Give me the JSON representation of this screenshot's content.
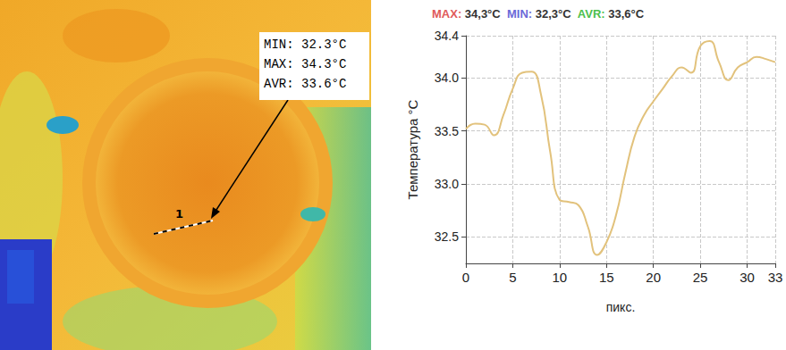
{
  "chart_data": {
    "type": "line",
    "header": [
      {
        "label": "MAX:",
        "text": "34,3°C",
        "color": "#e05a5a"
      },
      {
        "label": "MIN:",
        "text": "32,3°C",
        "color": "#6a6ad8"
      },
      {
        "label": "AVR:",
        "text": "33,6°C",
        "color": "#4cc04c"
      }
    ],
    "y_label": "Температура °C",
    "x_label": "пикс.",
    "x": [
      0,
      1,
      2,
      3,
      4,
      5,
      6,
      7,
      8,
      9,
      10,
      11,
      12,
      13,
      14,
      15,
      16,
      17,
      18,
      19,
      20,
      21,
      22,
      23,
      24,
      25,
      26,
      27,
      28,
      29,
      30,
      31,
      32,
      33
    ],
    "values": [
      33.52,
      33.57,
      33.56,
      33.46,
      33.65,
      33.9,
      34.05,
      34.06,
      33.85,
      33.3,
      32.85,
      32.83,
      32.8,
      32.6,
      32.33,
      32.45,
      32.7,
      33.1,
      33.45,
      33.65,
      33.78,
      33.9,
      34.02,
      34.1,
      34.05,
      34.3,
      34.35,
      34.15,
      33.98,
      34.1,
      34.15,
      34.2,
      34.18,
      34.15
    ],
    "color": "#e2c27c",
    "xlim": [
      0,
      33
    ],
    "xticks": [
      0,
      5,
      10,
      15,
      20,
      25,
      30,
      33
    ],
    "ylim": [
      32.25,
      34.4
    ],
    "yticks": [
      32.5,
      {
        "value": 33,
        "label": "33.0"
      },
      33.5,
      {
        "value": 34,
        "label": "34.0"
      },
      34.4
    ],
    "grid": true
  },
  "image": {
    "readout": [
      "MIN: 32.3°C",
      "MAX: 34.3°C",
      "AVR: 33.6°C"
    ],
    "line_label": "1"
  }
}
